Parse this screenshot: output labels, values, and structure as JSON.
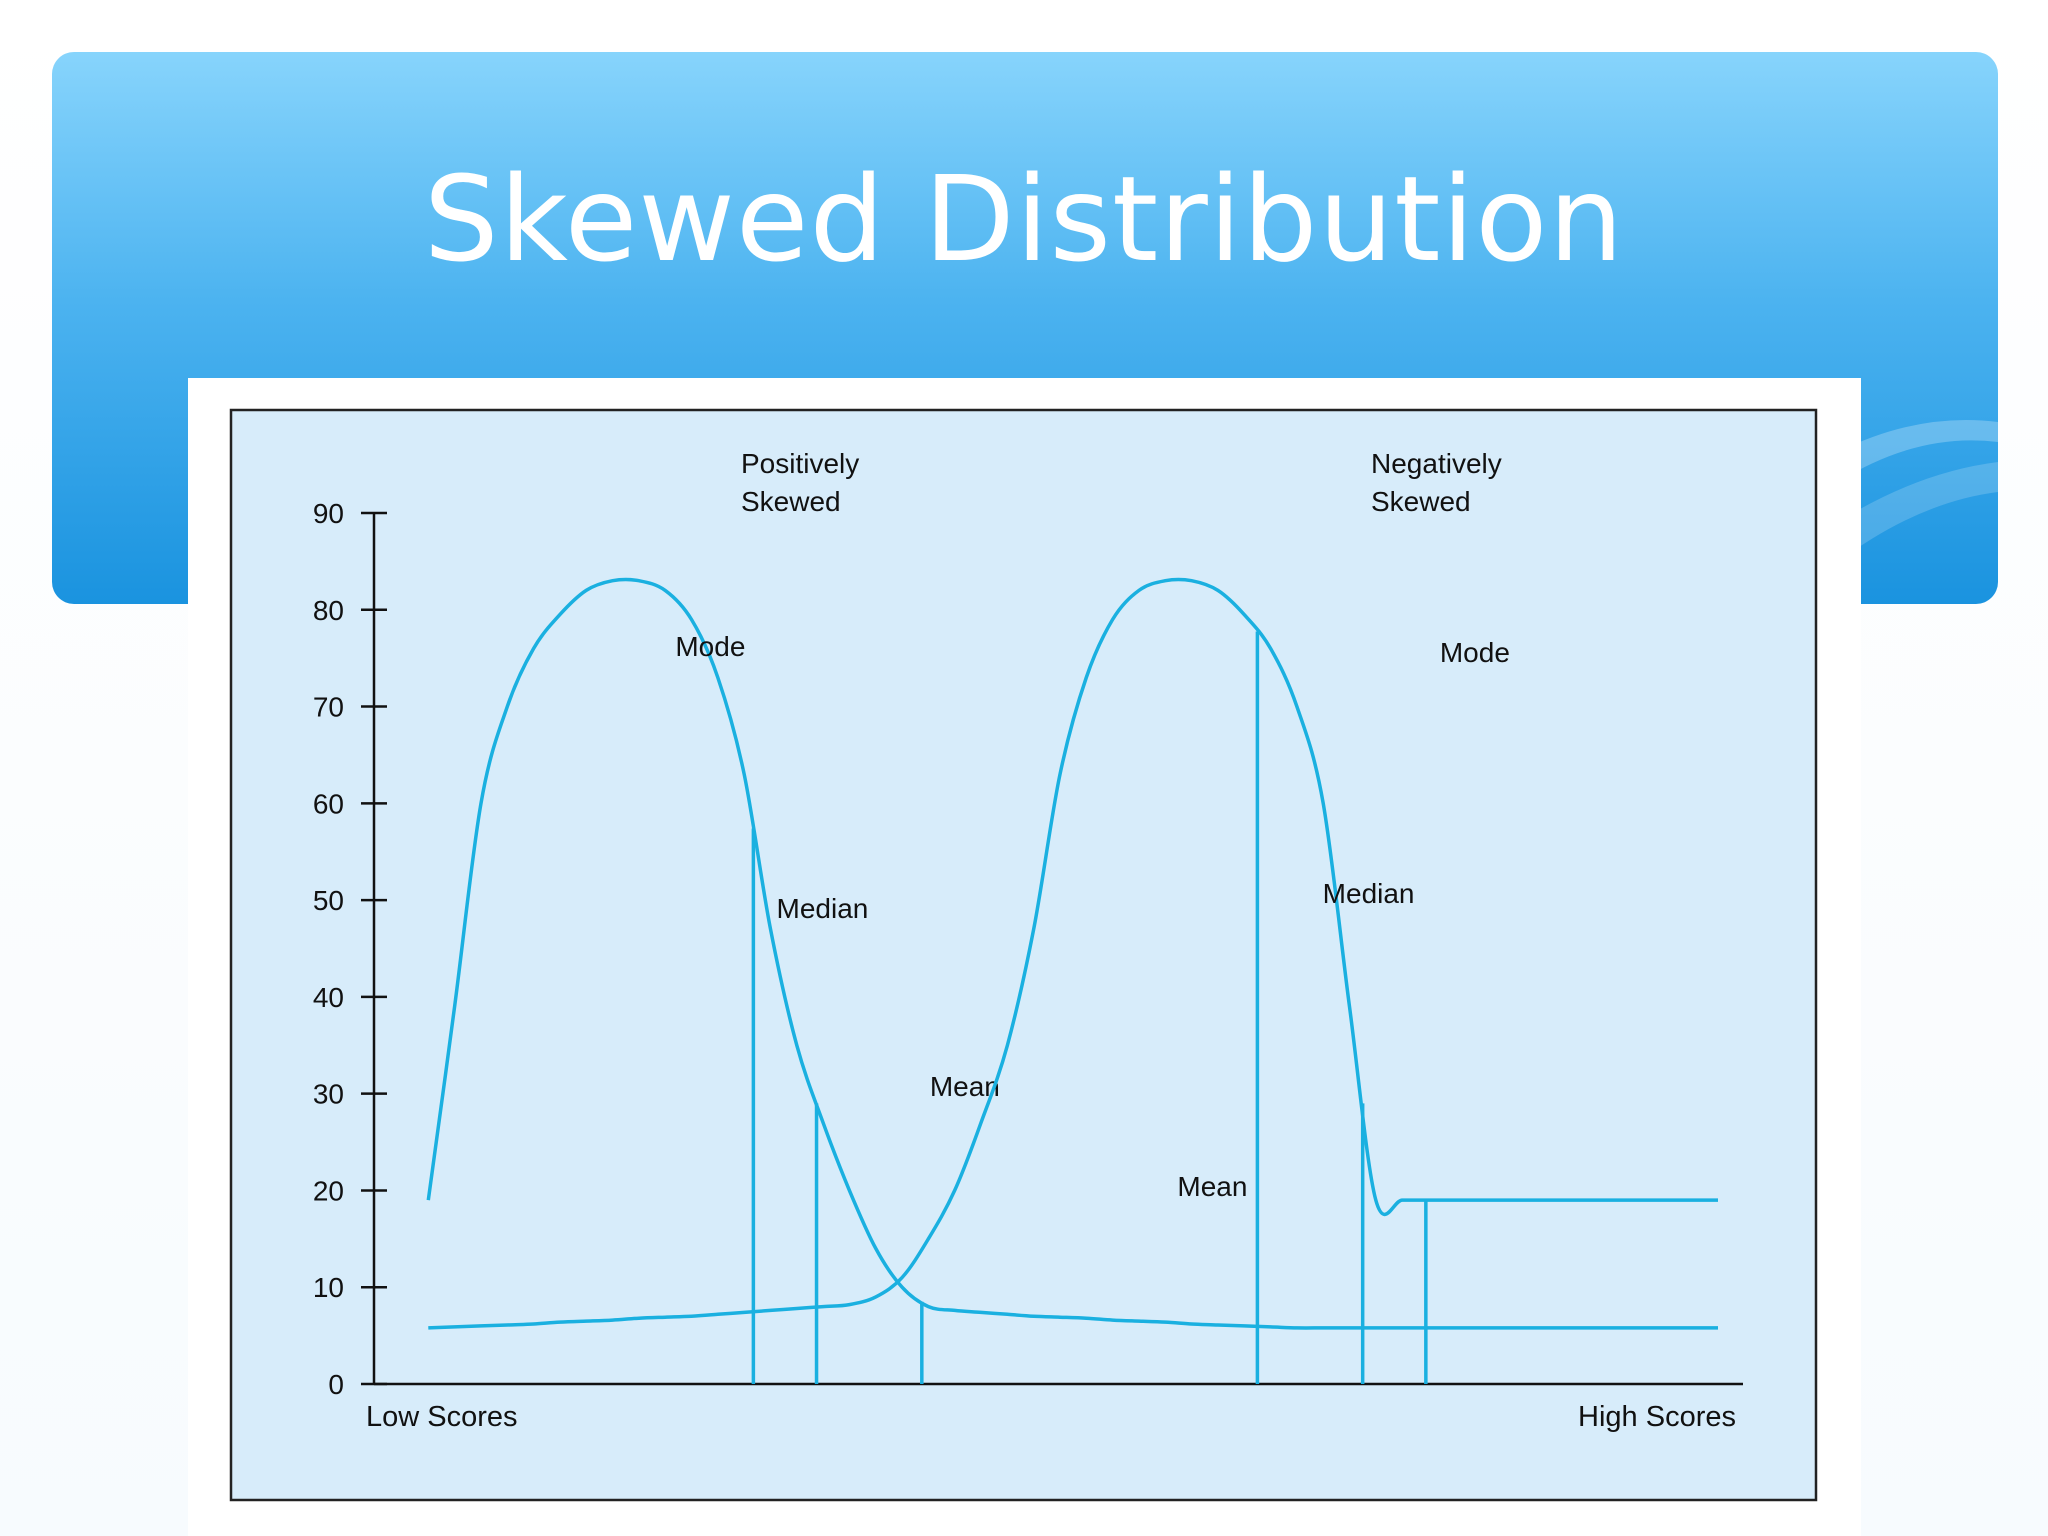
{
  "slide": {
    "title": "Skewed Distribution",
    "colors": {
      "banner_top": "#87d4fc",
      "banner_bottom": "#1a93df",
      "plot_bg": "#d7ecfa",
      "curve": "#1ab0e0"
    }
  },
  "chart_data": {
    "type": "line",
    "title": "",
    "xlabel": "",
    "ylabel": "",
    "ylim": [
      0,
      90
    ],
    "yticks": [
      0,
      10,
      20,
      30,
      40,
      50,
      60,
      70,
      80,
      90
    ],
    "x_endpoint_labels": {
      "low": "Low Scores",
      "high": "High Scores"
    },
    "x_range": [
      0,
      100
    ],
    "grid": false,
    "series": [
      {
        "x": [
          2,
          4,
          6,
          8,
          10,
          12,
          14,
          16,
          18,
          20,
          22,
          24,
          26,
          28,
          30,
          32,
          34,
          36,
          38,
          40,
          42,
          44,
          46,
          48,
          50,
          52,
          54,
          56,
          58,
          60,
          62,
          64,
          66,
          68,
          70,
          72,
          74,
          76,
          78,
          80,
          82,
          84,
          86,
          88,
          90,
          92,
          94,
          96,
          98,
          100
        ],
        "y": [
          19,
          39,
          60,
          70,
          76,
          79.5,
          82,
          83,
          83,
          82,
          79,
          73,
          63,
          47,
          35,
          27,
          20,
          14,
          10,
          8,
          7.6,
          7.4,
          7.2,
          7.0,
          6.9,
          6.8,
          6.6,
          6.5,
          6.4,
          6.2,
          6.1,
          6.0,
          5.9,
          5.8,
          5.8,
          5.8,
          5.8,
          5.8,
          5.8,
          5.8,
          5.8,
          5.8,
          5.8,
          5.8,
          5.8,
          5.8,
          5.8,
          5.8,
          5.8,
          5.8
        ],
        "caption": [
          "Positively",
          "Skewed"
        ],
        "markers": [
          {
            "label": "Mode",
            "x": 26.7
          },
          {
            "label": "Median",
            "x": 31.5
          },
          {
            "label": "Mean",
            "x": 39.5
          }
        ]
      },
      {
        "x": [
          2,
          4,
          6,
          8,
          10,
          12,
          14,
          16,
          18,
          20,
          22,
          24,
          26,
          28,
          30,
          32,
          34,
          36,
          38,
          40,
          42,
          44,
          46,
          48,
          50,
          52,
          54,
          56,
          58,
          60,
          62,
          64,
          66,
          68,
          70,
          72,
          74,
          76,
          78,
          80,
          82,
          84,
          86,
          88,
          90,
          92,
          94,
          96,
          98,
          100
        ],
        "y": [
          5.8,
          5.9,
          6.0,
          6.1,
          6.2,
          6.4,
          6.5,
          6.6,
          6.8,
          6.9,
          7.0,
          7.2,
          7.4,
          7.6,
          7.8,
          8.0,
          8.2,
          9,
          11,
          15,
          20,
          27,
          35,
          47,
          63,
          73,
          79,
          82,
          83,
          83,
          82,
          79.5,
          76,
          70,
          60,
          39,
          19,
          19,
          19,
          19,
          19,
          19,
          19,
          19,
          19,
          19,
          19,
          19,
          19,
          19
        ],
        "caption": [
          "Negatively",
          "Skewed"
        ],
        "markers": [
          {
            "label": "Mean",
            "x": 65
          },
          {
            "label": "Median",
            "x": 73
          },
          {
            "label": "Mode",
            "x": 77.8
          }
        ]
      }
    ]
  }
}
